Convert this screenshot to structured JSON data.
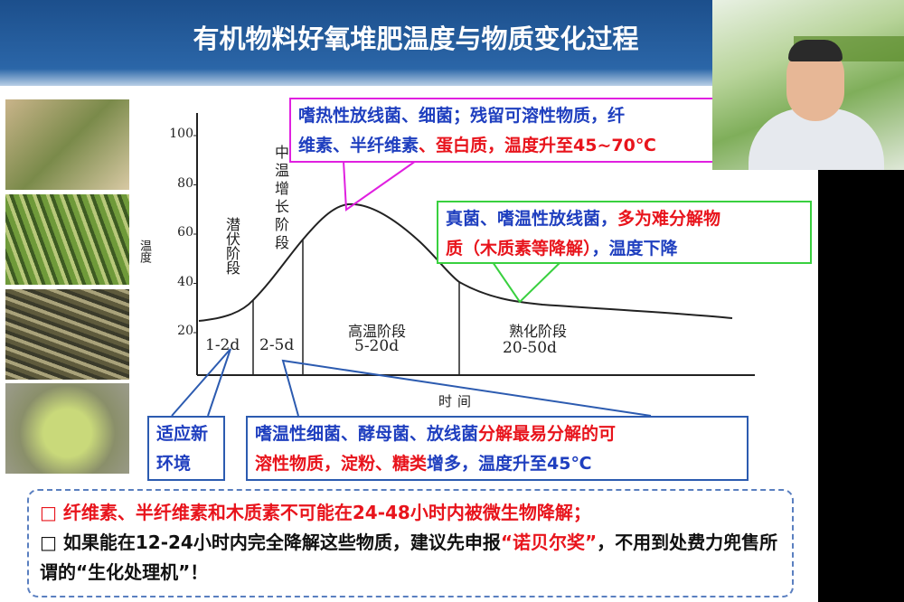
{
  "header": {
    "title": "有机物料好氧堆肥温度与物质变化过程"
  },
  "figure": {
    "y_label": "温度",
    "x_label": "时间",
    "yticks": [
      100,
      80,
      60,
      40,
      20
    ],
    "stages": [
      {
        "name": "潜伏阶段",
        "duration": "1-2d"
      },
      {
        "name": "中温增长阶段",
        "duration": "2-5d"
      },
      {
        "name": "高温阶段",
        "duration": "5-20d"
      },
      {
        "name": "熟化阶段",
        "duration": "20-50d"
      }
    ]
  },
  "callouts": {
    "thermophilic": {
      "lines": [
        [
          "嗜热性放线菌、细菌；残留可溶性物质，纤"
        ],
        [
          "维素、半纤维素",
          "、蛋白质，温度升至45~70℃"
        ]
      ]
    },
    "maturation": {
      "lines": [
        [
          "真菌、嗜温性放线菌，",
          "多为难分解物"
        ],
        [
          "质（木质素等降解）",
          "，温度下降"
        ]
      ]
    },
    "latent": {
      "text": "适应新环境"
    },
    "mesophilic": {
      "lines": [
        [
          "嗜温性细菌、酵母菌、放线菌",
          "分解最易分解的可"
        ],
        [
          "溶性物质，淀粉、糖类",
          "增多，温度升至45℃"
        ]
      ]
    }
  },
  "notes": [
    [
      "纤维素、半纤维素和木质素不可能在24-48小时内被微生物降解；"
    ],
    [
      "如果能在12-24小时内完全降解这些物质，建议先申报",
      "“诺贝尔奖”",
      "，不用到处费力兜售所谓的“生化处理机”！"
    ]
  ]
}
